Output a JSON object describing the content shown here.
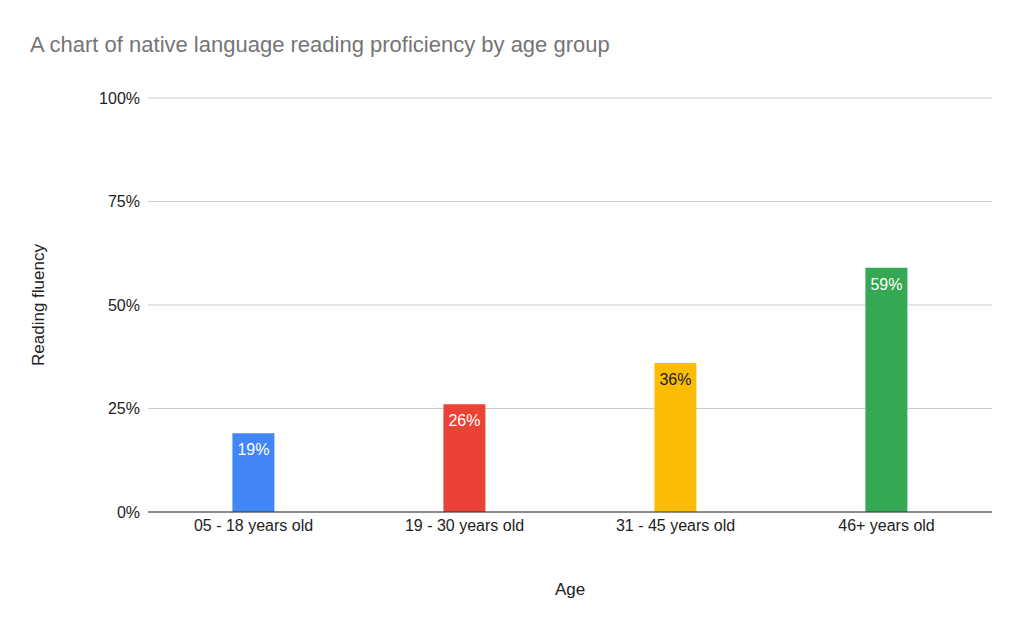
{
  "chart_data": {
    "type": "bar",
    "title": "A chart of native language reading proficiency by age group",
    "x_label": "Age",
    "y_label": "Reading fluency",
    "categories": [
      "05 - 18 years old",
      "19 - 30 years old",
      "31 - 45 years old",
      "46+ years old"
    ],
    "values": [
      19,
      26,
      36,
      59
    ],
    "value_labels": [
      "19%",
      "26%",
      "36%",
      "59%"
    ],
    "colors": [
      "#4285f4",
      "#ea4335",
      "#fbbc04",
      "#34a853"
    ],
    "ylim": [
      0,
      100
    ],
    "yticks": [
      {
        "value": 0,
        "label": "0%"
      },
      {
        "value": 25,
        "label": "25%"
      },
      {
        "value": 50,
        "label": "50%"
      },
      {
        "value": 75,
        "label": "75%"
      },
      {
        "value": 100,
        "label": "100%"
      }
    ],
    "grid": true,
    "data_labels": true
  }
}
